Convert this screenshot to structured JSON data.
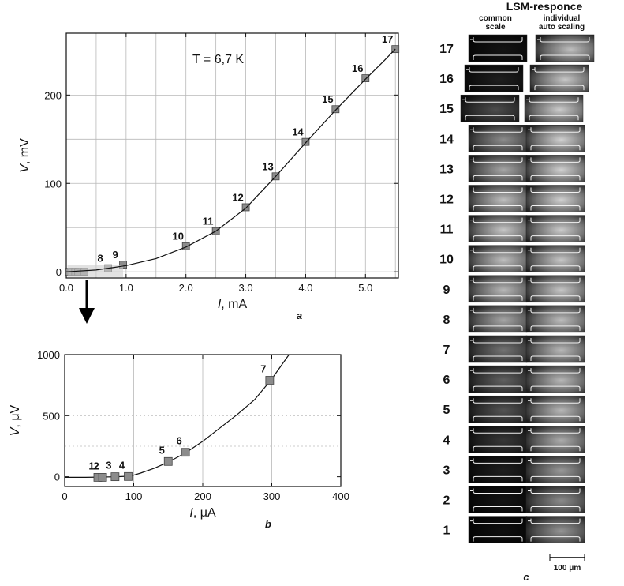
{
  "chart_data": [
    {
      "id": "a",
      "type": "line",
      "panel_label": "a",
      "annotation": "T = 6,7 K",
      "xlabel_var": "I",
      "xlabel_unit": ", mA",
      "ylabel_var": "V",
      "ylabel_unit": ", mV",
      "xlim": [
        0,
        5.55
      ],
      "ylim": [
        -7,
        270
      ],
      "xticks": [
        0,
        1,
        2,
        3,
        4,
        5
      ],
      "xtick_labels": [
        "0.0",
        "1.0",
        "2.0",
        "3.0",
        "4.0",
        "5.0"
      ],
      "yticks": [
        0,
        100,
        200
      ],
      "ytick_labels": [
        "0",
        "100",
        "200"
      ],
      "xgrid": [
        0.5,
        1,
        1.5,
        2,
        2.5,
        3,
        3.5,
        4,
        4.5,
        5,
        5.5
      ],
      "ygrid": [
        0,
        50,
        100,
        150,
        200,
        250
      ],
      "grid": true,
      "curve": [
        [
          0,
          0
        ],
        [
          0.5,
          2
        ],
        [
          0.8,
          5
        ],
        [
          1,
          7
        ],
        [
          1.5,
          15
        ],
        [
          2,
          28
        ],
        [
          2.5,
          46
        ],
        [
          3,
          72
        ],
        [
          3.5,
          108
        ],
        [
          4,
          146
        ],
        [
          4.5,
          183
        ],
        [
          5,
          218
        ],
        [
          5.3,
          238
        ],
        [
          5.5,
          252
        ]
      ],
      "points": [
        {
          "label": "",
          "x": 0.05,
          "y": 0
        },
        {
          "label": "",
          "x": 0.1,
          "y": 0
        },
        {
          "label": "",
          "x": 0.15,
          "y": 0
        },
        {
          "label": "",
          "x": 0.2,
          "y": 0
        },
        {
          "label": "",
          "x": 0.3,
          "y": 0
        },
        {
          "label": "8",
          "x": 0.7,
          "y": 4
        },
        {
          "label": "9",
          "x": 0.95,
          "y": 8
        },
        {
          "label": "10",
          "x": 2.0,
          "y": 29
        },
        {
          "label": "11",
          "x": 2.5,
          "y": 46
        },
        {
          "label": "12",
          "x": 3.0,
          "y": 73
        },
        {
          "label": "13",
          "x": 3.5,
          "y": 108
        },
        {
          "label": "14",
          "x": 4.0,
          "y": 147
        },
        {
          "label": "15",
          "x": 4.5,
          "y": 184
        },
        {
          "label": "16",
          "x": 5.0,
          "y": 219
        },
        {
          "label": "17",
          "x": 5.5,
          "y": 252
        }
      ]
    },
    {
      "id": "b",
      "type": "line",
      "panel_label": "b",
      "xlabel_var": "I",
      "xlabel_unit": ", μA",
      "ylabel_var": "V",
      "ylabel_unit": ", μV",
      "xlim": [
        0,
        400
      ],
      "ylim": [
        -80,
        1000
      ],
      "xticks": [
        0,
        100,
        200,
        300,
        400
      ],
      "xtick_labels": [
        "0",
        "100",
        "200",
        "300",
        "400"
      ],
      "yticks": [
        0,
        500,
        1000
      ],
      "ytick_labels": [
        "0",
        "500",
        "1000"
      ],
      "xgrid": [
        100,
        200,
        300
      ],
      "ygrid": [
        250,
        500,
        750
      ],
      "grid": true,
      "curve": [
        [
          0,
          -5
        ],
        [
          30,
          -5
        ],
        [
          50,
          -3
        ],
        [
          75,
          0
        ],
        [
          95,
          5
        ],
        [
          110,
          30
        ],
        [
          130,
          70
        ],
        [
          150,
          120
        ],
        [
          175,
          195
        ],
        [
          200,
          290
        ],
        [
          225,
          400
        ],
        [
          250,
          510
        ],
        [
          275,
          630
        ],
        [
          300,
          800
        ],
        [
          315,
          920
        ],
        [
          325,
          1000
        ]
      ],
      "points": [
        {
          "label": "1",
          "x": 48,
          "y": -5
        },
        {
          "label": "2",
          "x": 55,
          "y": -5
        },
        {
          "label": "3",
          "x": 73,
          "y": 0
        },
        {
          "label": "4",
          "x": 92,
          "y": 2
        },
        {
          "label": "5",
          "x": 150,
          "y": 125
        },
        {
          "label": "6",
          "x": 175,
          "y": 200
        },
        {
          "label": "7",
          "x": 297,
          "y": 790
        }
      ]
    }
  ],
  "lsm": {
    "title": "LSM-responce",
    "col1": [
      "common",
      "scale"
    ],
    "col2": [
      "individual",
      "auto scaling"
    ],
    "rows": [
      {
        "n": "17",
        "left": 0.08,
        "right": 0.75
      },
      {
        "n": "16",
        "left": 0.12,
        "right": 0.78
      },
      {
        "n": "15",
        "left": 0.3,
        "right": 0.8
      },
      {
        "n": "14",
        "left": 0.55,
        "right": 0.82
      },
      {
        "n": "13",
        "left": 0.65,
        "right": 0.82
      },
      {
        "n": "12",
        "left": 0.75,
        "right": 0.82
      },
      {
        "n": "11",
        "left": 0.78,
        "right": 0.8
      },
      {
        "n": "10",
        "left": 0.75,
        "right": 0.78
      },
      {
        "n": "9",
        "left": 0.72,
        "right": 0.78
      },
      {
        "n": "8",
        "left": 0.65,
        "right": 0.74
      },
      {
        "n": "7",
        "left": 0.45,
        "right": 0.72
      },
      {
        "n": "6",
        "left": 0.38,
        "right": 0.72
      },
      {
        "n": "5",
        "left": 0.33,
        "right": 0.72
      },
      {
        "n": "4",
        "left": 0.22,
        "right": 0.68
      },
      {
        "n": "3",
        "left": 0.12,
        "right": 0.6
      },
      {
        "n": "2",
        "left": 0.08,
        "right": 0.55
      },
      {
        "n": "1",
        "left": 0.06,
        "right": 0.58
      }
    ],
    "scalebar_label": "100 μm",
    "panel_label": "c"
  },
  "colors": {
    "marker": "#8c8c8c",
    "grid": "#b8b8b8",
    "axis": "#111111"
  }
}
